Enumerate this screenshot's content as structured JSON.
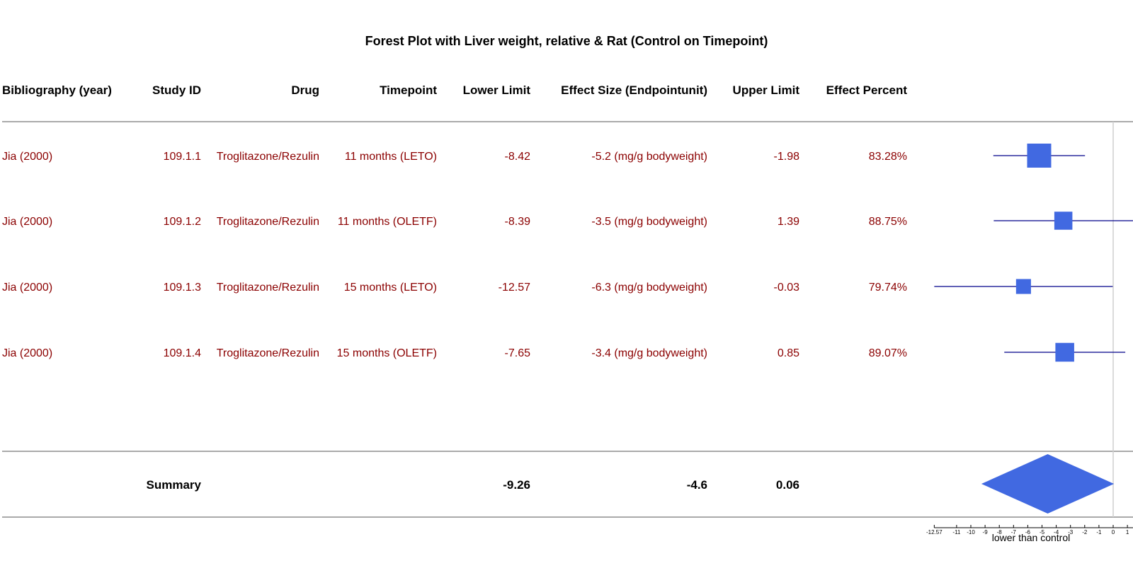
{
  "title": "Forest Plot with Liver weight, relative & Rat (Control on Timepoint)",
  "columns": [
    "Bibliography (year)",
    "Study ID",
    "Drug",
    "Timepoint",
    "Lower Limit",
    "Effect Size (Endpointunit)",
    "Upper Limit",
    "Effect Percent"
  ],
  "rows": [
    {
      "bibliography": "Jia (2000)",
      "study_id": "109.1.1",
      "drug": "Troglitazone/Rezulin",
      "timepoint": "11 months (LETO)",
      "lower": "-8.42",
      "effect": "-5.2 (mg/g bodyweight)",
      "upper": "-1.98",
      "percent": "83.28%"
    },
    {
      "bibliography": "Jia (2000)",
      "study_id": "109.1.2",
      "drug": "Troglitazone/Rezulin",
      "timepoint": "11 months (OLETF)",
      "lower": "-8.39",
      "effect": "-3.5 (mg/g bodyweight)",
      "upper": "1.39",
      "percent": "88.75%"
    },
    {
      "bibliography": "Jia (2000)",
      "study_id": "109.1.3",
      "drug": "Troglitazone/Rezulin",
      "timepoint": "15 months (LETO)",
      "lower": "-12.57",
      "effect": "-6.3 (mg/g bodyweight)",
      "upper": "-0.03",
      "percent": "79.74%"
    },
    {
      "bibliography": "Jia (2000)",
      "study_id": "109.1.4",
      "drug": "Troglitazone/Rezulin",
      "timepoint": "15 months (OLETF)",
      "lower": "-7.65",
      "effect": "-3.4 (mg/g bodyweight)",
      "upper": "0.85",
      "percent": "89.07%"
    }
  ],
  "summary": {
    "label": "Summary",
    "lower": "-9.26",
    "effect": "-4.6",
    "upper": "0.06"
  },
  "colors": {
    "row_text": "#8b0000",
    "marker": "#4169e1",
    "ci_line": "#00008b",
    "header_text": "#000000"
  },
  "chart_data": {
    "type": "forest",
    "title": "Forest Plot with Liver weight, relative & Rat (Control on Timepoint)",
    "xlabel": "lower than control",
    "xlim": [
      -12.57,
      1.39
    ],
    "xticks": [
      -12.57,
      -11,
      -10,
      -9,
      -8,
      -7,
      -6,
      -5,
      -4,
      -3,
      -2,
      -1,
      0,
      1
    ],
    "xtick_labels": [
      "-12.57",
      "-11",
      "-10",
      "-9",
      "-8",
      "-7",
      "-6",
      "-5",
      "-4",
      "-3",
      "-2",
      "-1",
      "0",
      "1"
    ],
    "reference_line": 0,
    "studies": [
      {
        "id": "109.1.1",
        "lower": -8.42,
        "estimate": -5.2,
        "upper": -1.98,
        "weight": 1.0
      },
      {
        "id": "109.1.2",
        "lower": -8.39,
        "estimate": -3.5,
        "upper": 1.39,
        "weight": 0.75
      },
      {
        "id": "109.1.3",
        "lower": -12.57,
        "estimate": -6.3,
        "upper": -0.03,
        "weight": 0.62
      },
      {
        "id": "109.1.4",
        "lower": -7.65,
        "estimate": -3.4,
        "upper": 0.85,
        "weight": 0.78
      }
    ],
    "summary": {
      "lower": -9.26,
      "estimate": -4.6,
      "upper": 0.06
    }
  }
}
